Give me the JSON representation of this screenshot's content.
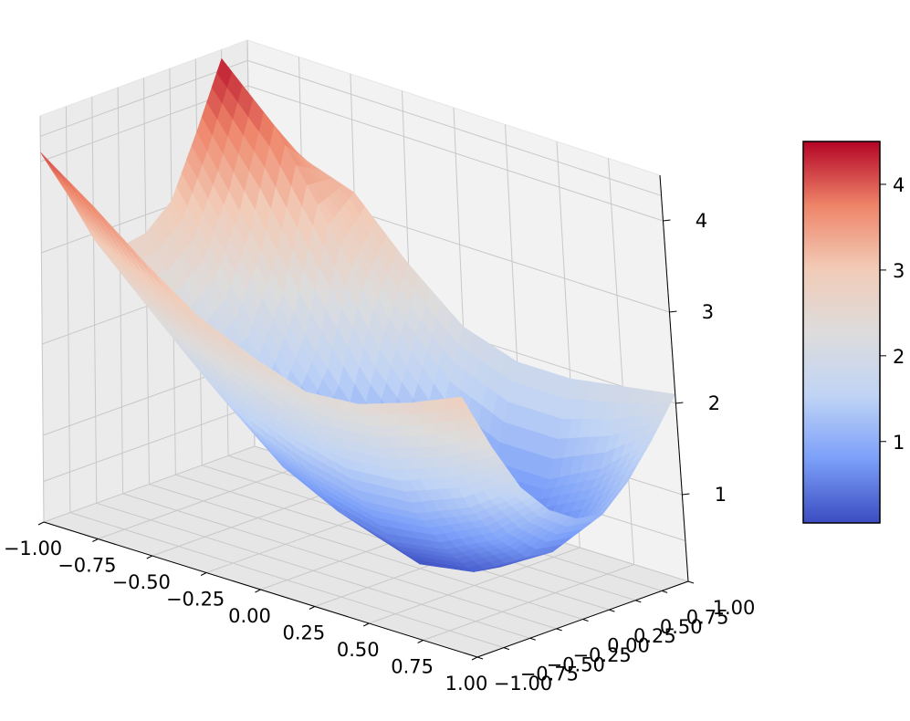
{
  "chart_data": {
    "type": "surface3d",
    "title": "",
    "xlabel": "",
    "ylabel": "",
    "zlabel": "",
    "x_ticks": [
      "−1.00",
      "−0.75",
      "−0.50",
      "−0.25",
      "0.00",
      "0.25",
      "0.50",
      "0.75",
      "1.00"
    ],
    "y_ticks": [
      "−1.00",
      "−0.75",
      "−0.50",
      "−0.25",
      "0.00",
      "0.25",
      "0.50",
      "0.75",
      "1.00"
    ],
    "z_ticks": [
      "1",
      "2",
      "3",
      "4"
    ],
    "xlim": [
      -1,
      1
    ],
    "ylim": [
      -1,
      1
    ],
    "zlim": [
      0.05,
      4.5
    ],
    "grid": true,
    "colormap": "coolwarm",
    "colormap_stops": [
      "#3b4cc0",
      "#7b9ff9",
      "#c0d4f5",
      "#dddcdc",
      "#f2cbb7",
      "#ee8468",
      "#b40426"
    ],
    "colorbar": {
      "ticks": [
        "1",
        "2",
        "3",
        "4"
      ],
      "range": [
        0.05,
        4.5
      ],
      "placement": "right"
    },
    "surface_grid_x": [
      -1.0,
      -0.75,
      -0.5,
      -0.25,
      0.0,
      0.25,
      0.5,
      0.75,
      1.0
    ],
    "surface_grid_y": [
      -1.0,
      -0.75,
      -0.5,
      -0.25,
      0.0,
      0.25,
      0.5,
      0.75,
      1.0
    ],
    "surface_z": [
      [
        4.1,
        3.7,
        3.25,
        2.85,
        2.6,
        2.4,
        2.45,
        2.65,
        2.9
      ],
      [
        3.55,
        3.05,
        2.55,
        2.1,
        1.85,
        1.7,
        1.75,
        1.95,
        2.25
      ],
      [
        2.95,
        2.4,
        1.85,
        1.4,
        1.15,
        1.0,
        1.05,
        1.3,
        1.7
      ],
      [
        2.75,
        2.05,
        1.4,
        0.9,
        0.6,
        0.45,
        0.55,
        0.85,
        1.35
      ],
      [
        2.8,
        1.95,
        1.2,
        0.65,
        0.3,
        0.1,
        0.2,
        0.55,
        1.15
      ],
      [
        3.05,
        2.15,
        1.3,
        0.7,
        0.3,
        0.1,
        0.15,
        0.5,
        1.1
      ],
      [
        3.7,
        2.8,
        1.85,
        1.1,
        0.6,
        0.4,
        0.45,
        0.75,
        1.35
      ],
      [
        4.4,
        3.85,
        2.95,
        1.95,
        1.2,
        0.9,
        0.9,
        1.2,
        1.7
      ],
      [
        3.2,
        3.4,
        3.2,
        2.6,
        2.1,
        1.9,
        1.9,
        2.0,
        2.1
      ]
    ]
  }
}
